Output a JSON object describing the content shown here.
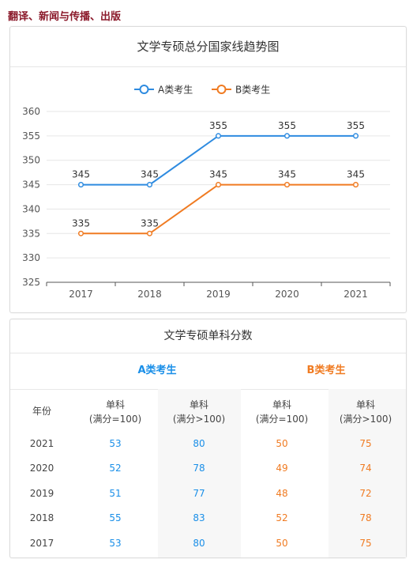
{
  "page": {
    "heading": "翻译、新闻与传播、出版"
  },
  "chart_data": {
    "type": "line",
    "title": "文学专硕总分国家线趋势图",
    "categories": [
      "2017",
      "2018",
      "2019",
      "2020",
      "2021"
    ],
    "series": [
      {
        "name": "A类考生",
        "values": [
          345,
          345,
          355,
          355,
          355
        ],
        "color": "#2e8be0"
      },
      {
        "name": "B类考生",
        "values": [
          335,
          335,
          345,
          345,
          345
        ],
        "color": "#f07b22"
      }
    ],
    "ylim": [
      325,
      360
    ],
    "yticks": [
      "325",
      "330",
      "335",
      "340",
      "345",
      "350",
      "355",
      "360"
    ],
    "grid": true,
    "legend": "top-center"
  },
  "table": {
    "title": "文学专硕单科分数",
    "group_a": "A类考生",
    "group_b": "B类考生",
    "col_year": "年份",
    "col1_line1": "单科",
    "col1_line2": "(满分=100)",
    "col2_line1": "单科",
    "col2_line2": "(满分>100)",
    "col3_line1": "单科",
    "col3_line2": "(满分=100)",
    "col4_line1": "单科",
    "col4_line2": "(满分>100)",
    "rows": [
      {
        "year": "2021",
        "a100": "53",
        "aover": "80",
        "b100": "50",
        "bover": "75"
      },
      {
        "year": "2020",
        "a100": "52",
        "aover": "78",
        "b100": "49",
        "bover": "74"
      },
      {
        "year": "2019",
        "a100": "51",
        "aover": "77",
        "b100": "48",
        "bover": "72"
      },
      {
        "year": "2018",
        "a100": "55",
        "aover": "83",
        "b100": "52",
        "bover": "78"
      },
      {
        "year": "2017",
        "a100": "53",
        "aover": "80",
        "b100": "50",
        "bover": "75"
      }
    ]
  }
}
